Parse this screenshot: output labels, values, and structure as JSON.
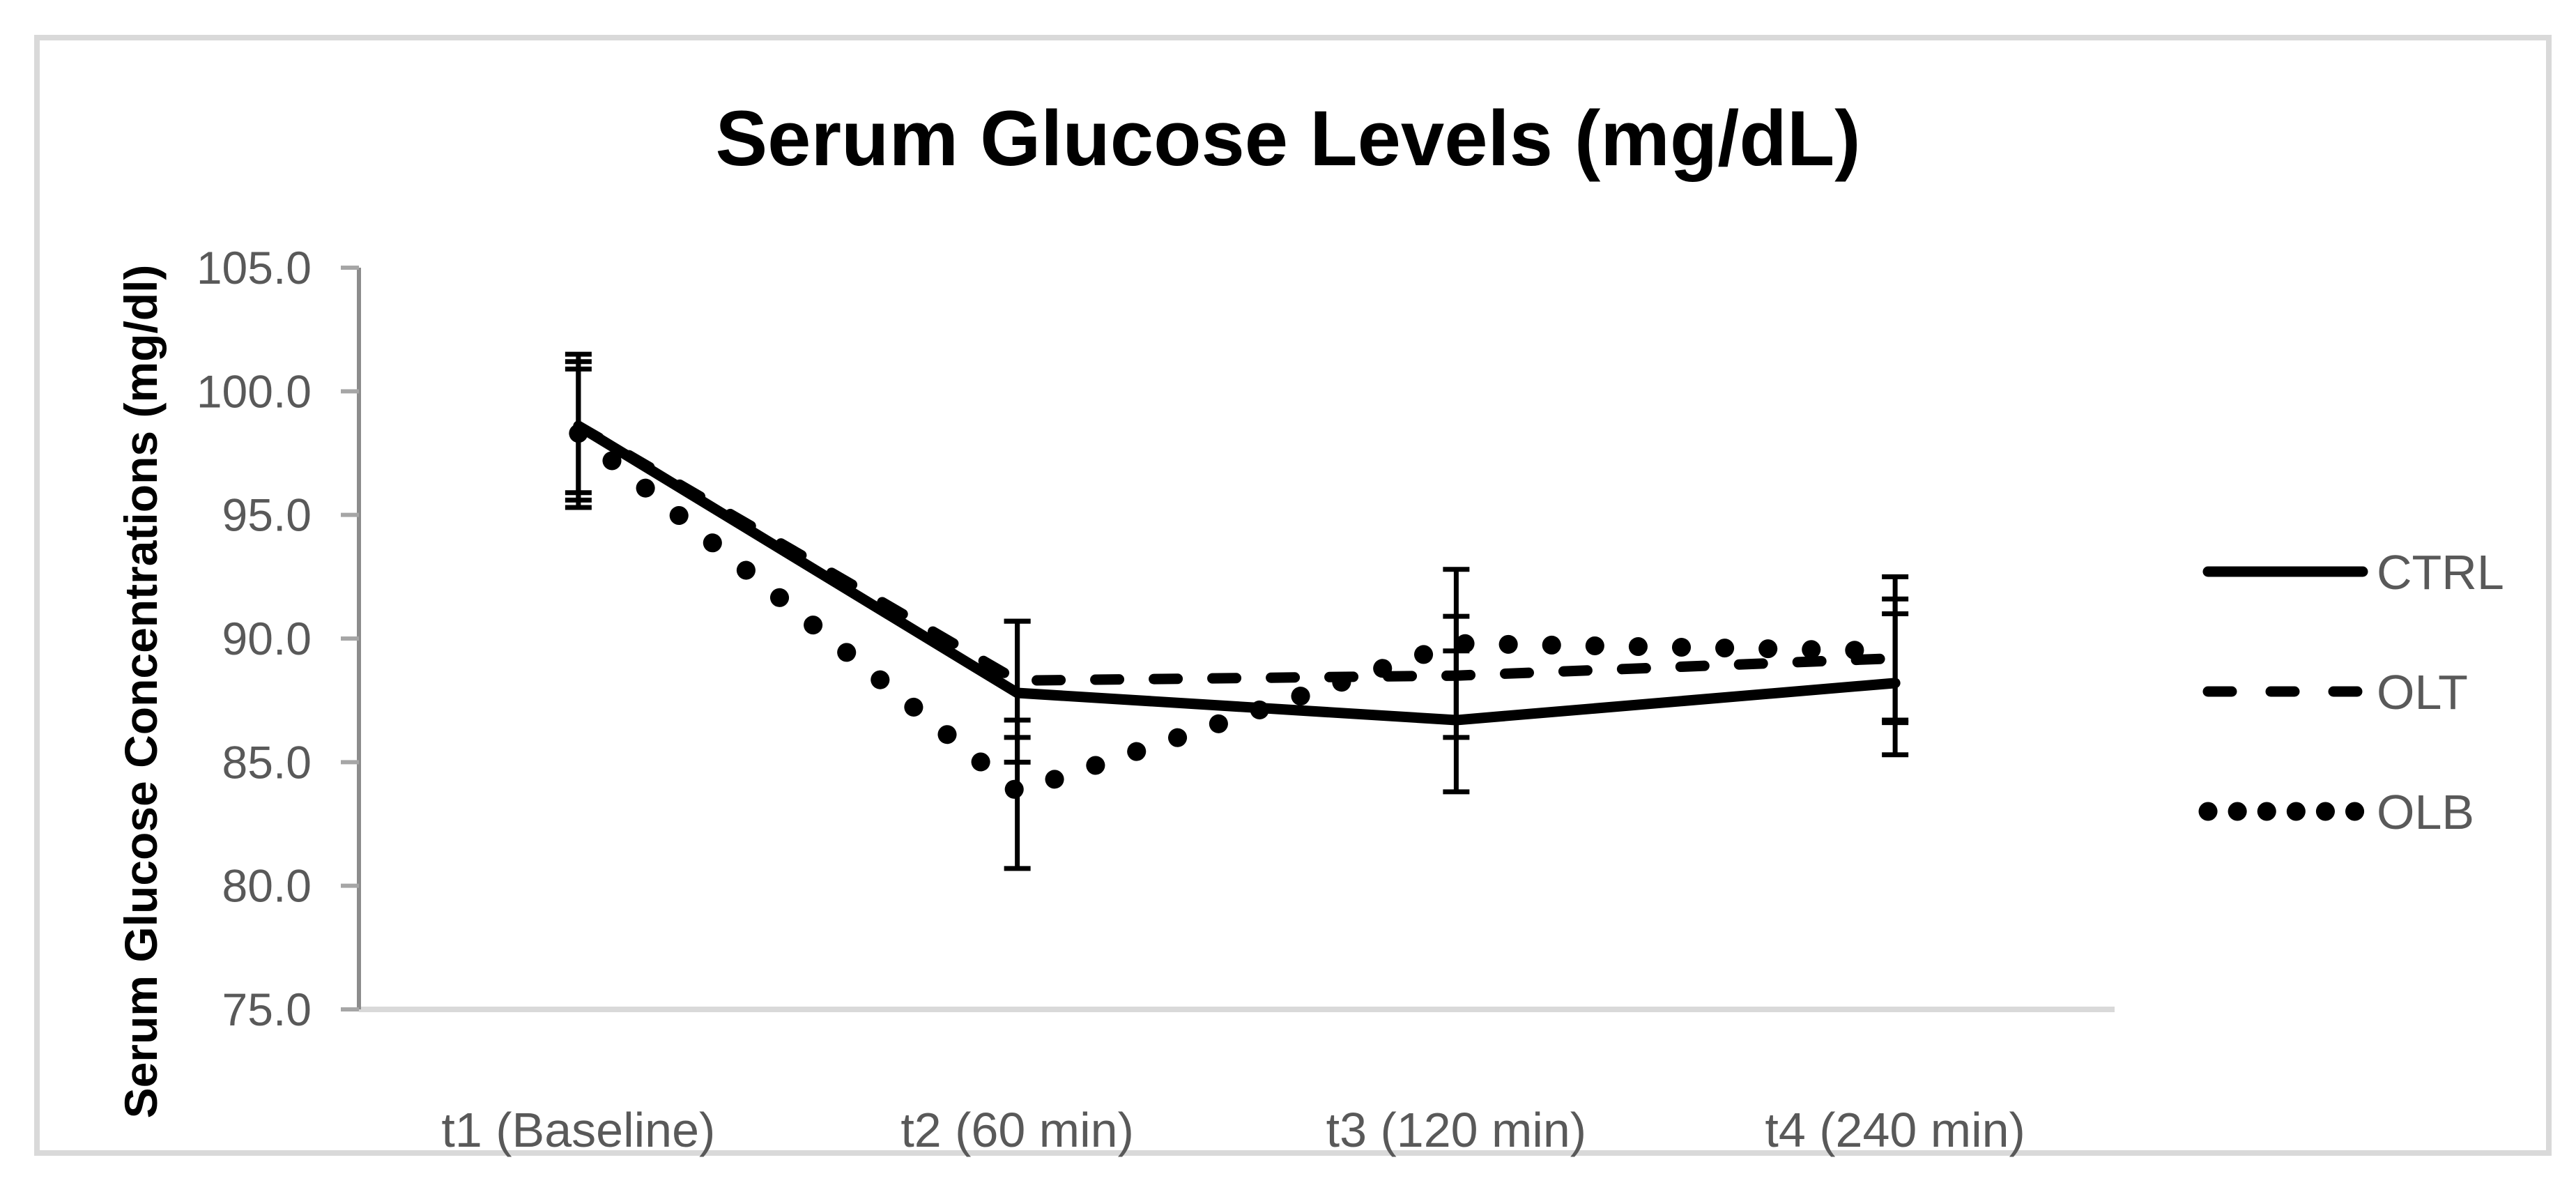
{
  "figure": {
    "background": "#ffffff",
    "border_color": "#d9d9d9"
  },
  "chart_data": {
    "type": "line",
    "title": "Serum Glucose Levels (mg/dL)",
    "ylabel": "Serum Glucose Concentrations (mg/dl)",
    "xlabel": "",
    "categories": [
      "t1 (Baseline)",
      "t2 (60 min)",
      "t3 (120 min)",
      "t4 (240 min)"
    ],
    "y_tick_labels": [
      "105.0",
      "100.0",
      "95.0",
      "90.0",
      "85.0",
      "80.0",
      "75.0"
    ],
    "ylim": [
      75,
      105
    ],
    "grid": false,
    "legend_position": "right",
    "error_bars": true,
    "series": [
      {
        "name": "CTRL",
        "line_style": "solid",
        "color": "#000000",
        "values": [
          98.6,
          87.8,
          86.7,
          88.2
        ],
        "error_low": [
          95.9,
          85.0,
          83.8,
          85.3
        ],
        "error_high": [
          101.2,
          90.7,
          89.5,
          91.0
        ]
      },
      {
        "name": "OLT",
        "line_style": "dashed",
        "color": "#000000",
        "values": [
          98.6,
          88.3,
          88.5,
          89.2
        ],
        "error_low": [
          95.6,
          86.0,
          86.0,
          86.7
        ],
        "error_high": [
          101.5,
          90.7,
          90.9,
          91.6
        ]
      },
      {
        "name": "OLB",
        "line_style": "dotted",
        "color": "#000000",
        "values": [
          98.3,
          83.8,
          89.8,
          89.5
        ],
        "error_low": [
          95.3,
          80.7,
          86.7,
          86.6
        ],
        "error_high": [
          100.9,
          86.7,
          92.8,
          92.5
        ]
      }
    ],
    "colors": {
      "label_text": "#595959",
      "axis_line": "#8c8c8c",
      "tick_mark": "#a6a6a6",
      "baseline": "#d9d9d9",
      "series": "#000000"
    }
  }
}
